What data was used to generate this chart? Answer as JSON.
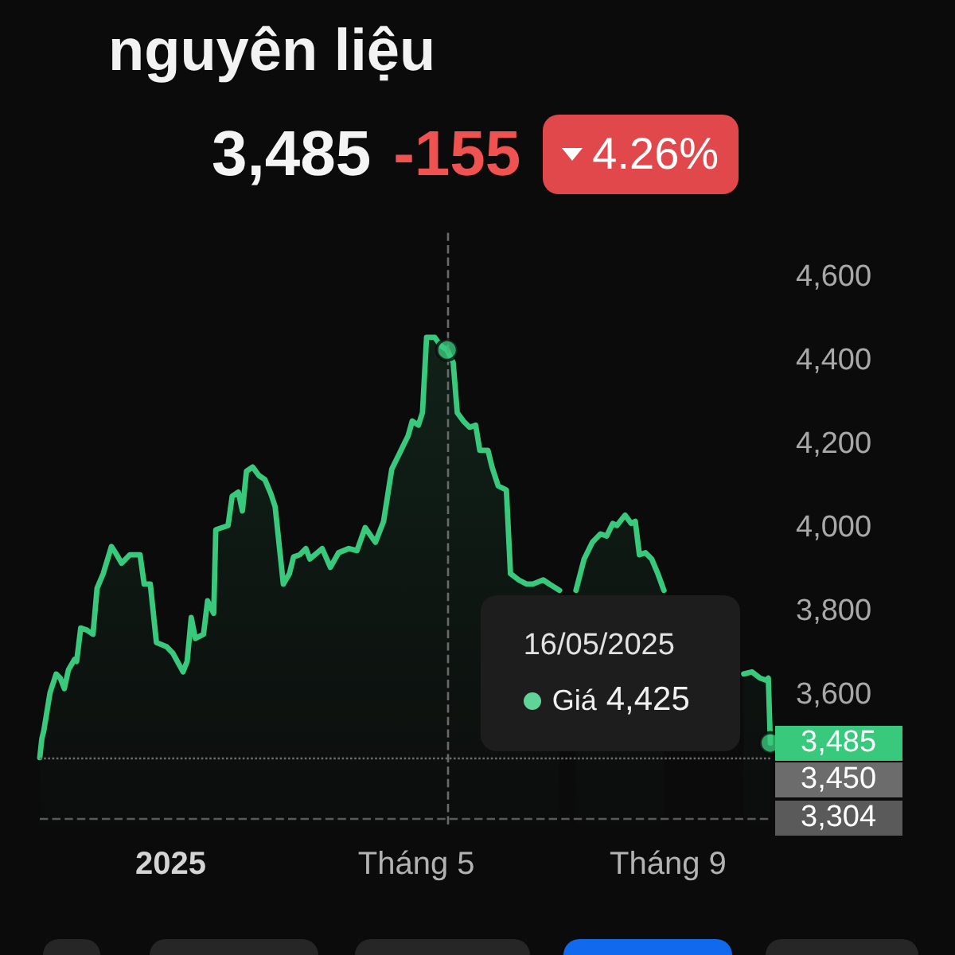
{
  "chart_data": {
    "type": "area",
    "title": "nguyên liệu",
    "annotations": [
      "3,485",
      "-155",
      "4.26%",
      "16/05/2025",
      "4,425"
    ],
    "x": [
      "2024-10-29",
      "2024-10-30",
      "2024-10-31",
      "2024-11-03",
      "2024-11-06",
      "2024-11-08",
      "2024-11-10",
      "2024-11-12",
      "2024-11-15",
      "2024-11-16",
      "2024-11-18",
      "2024-11-21",
      "2024-11-24",
      "2024-11-26",
      "2024-11-29",
      "2024-12-03",
      "2024-12-05",
      "2024-12-08",
      "2024-12-12",
      "2024-12-17",
      "2024-12-19",
      "2024-12-22",
      "2024-12-25",
      "2024-12-30",
      "2025-01-02",
      "2025-01-07",
      "2025-01-09",
      "2025-01-11",
      "2025-01-13",
      "2025-01-17",
      "2025-01-19",
      "2025-01-22",
      "2025-01-23",
      "2025-01-29",
      "2025-01-31",
      "2025-02-03",
      "2025-02-05",
      "2025-02-07",
      "2025-02-10",
      "2025-02-13",
      "2025-02-16",
      "2025-02-19",
      "2025-02-21",
      "2025-02-25",
      "2025-02-28",
      "2025-03-02",
      "2025-03-05",
      "2025-03-08",
      "2025-03-10",
      "2025-03-16",
      "2025-03-20",
      "2025-03-24",
      "2025-03-29",
      "2025-04-02",
      "2025-04-06",
      "2025-04-11",
      "2025-04-15",
      "2025-04-19",
      "2025-04-23",
      "2025-04-27",
      "2025-04-29",
      "2025-05-02",
      "2025-05-04",
      "2025-05-06",
      "2025-05-10",
      "2025-05-13",
      "2025-05-16",
      "2025-05-19",
      "2025-05-21",
      "2025-05-24",
      "2025-05-27",
      "2025-05-30",
      "2025-06-01",
      "2025-06-05",
      "2025-06-07",
      "2025-06-10",
      "2025-06-14",
      "2025-06-16",
      "2025-06-20",
      "2025-06-24",
      "2025-06-27",
      "2025-07-02",
      "2025-07-05",
      "2025-07-10",
      "2025-07-14",
      "2025-07-18",
      "2025-07-22",
      "2025-07-26",
      "2025-07-30",
      "2025-08-02",
      "2025-08-05",
      "2025-08-07",
      "2025-08-11",
      "2025-08-14",
      "2025-08-16",
      "2025-08-18",
      "2025-08-21",
      "2025-08-24",
      "2025-08-27",
      "2025-08-30",
      "2025-09-02",
      "2025-10-08",
      "2025-10-12",
      "2025-10-16",
      "2025-10-19",
      "2025-10-20",
      "2025-10-21"
    ],
    "series": [
      {
        "name": "Giá",
        "color": "#38c97c",
        "values": [
          3450,
          3495,
          3515,
          3605,
          3650,
          3640,
          3615,
          3660,
          3685,
          3680,
          3760,
          3755,
          3745,
          3855,
          3890,
          3955,
          3940,
          3915,
          3935,
          3935,
          3865,
          3865,
          3725,
          3715,
          3700,
          3655,
          3680,
          3785,
          3735,
          3745,
          3825,
          3795,
          3995,
          4005,
          4075,
          4085,
          4040,
          4135,
          4145,
          4125,
          4115,
          4080,
          4050,
          3865,
          3890,
          3930,
          3935,
          3950,
          3925,
          3950,
          3905,
          3940,
          3950,
          3945,
          4000,
          3965,
          4015,
          4140,
          4180,
          4220,
          4255,
          4245,
          4275,
          4455,
          4455,
          4435,
          4425,
          4395,
          4275,
          4255,
          4240,
          4245,
          4185,
          4185,
          4145,
          4100,
          4090,
          3890,
          3875,
          3865,
          3865,
          3875,
          3865,
          3850,
          null,
          3850,
          3925,
          3965,
          3985,
          3980,
          4010,
          4005,
          4030,
          4010,
          4015,
          3935,
          3940,
          3925,
          3890,
          3850,
          null,
          3650,
          3655,
          3640,
          3635,
          3640,
          3485
        ]
      },
      {
        "type": "scatter",
        "x": [
          "2025-05-16",
          "2025-10-21"
        ],
        "values": [
          4425,
          3485
        ],
        "color": "#38c97c",
        "marker": "circle",
        "value_labels": [
          null,
          "3,485"
        ]
      }
    ],
    "xlim": [
      "2024-10-29",
      "2025-10-21"
    ],
    "xticks": [
      {
        "value": "2025-01-01",
        "label": "2025"
      },
      {
        "value": "2025-05-01",
        "label": "Tháng 5"
      },
      {
        "value": "2025-09-01",
        "label": "Tháng 9"
      }
    ],
    "ylim": [
      3290,
      4710
    ],
    "yticks": [
      {
        "value": 3600,
        "label": "3,600"
      },
      {
        "value": 3800,
        "label": "3,800"
      },
      {
        "value": 4000,
        "label": "4,000"
      },
      {
        "value": 4200,
        "label": "4,200"
      },
      {
        "value": 4400,
        "label": "4,400"
      },
      {
        "value": 4600,
        "label": "4,600"
      }
    ],
    "ref_lines": [
      {
        "axis": "x",
        "value": "2025-05-16",
        "line_style": "dashed",
        "color": "#6a6a6a"
      },
      {
        "axis": "y",
        "value": 3450,
        "label": "3,450",
        "line_style": "dotted",
        "color": "#6c6c6c"
      },
      {
        "axis": "y",
        "value": 3304,
        "label": "3,304",
        "line_style": "dashed",
        "color": "#5a5a5a"
      }
    ],
    "grid": false
  }
}
